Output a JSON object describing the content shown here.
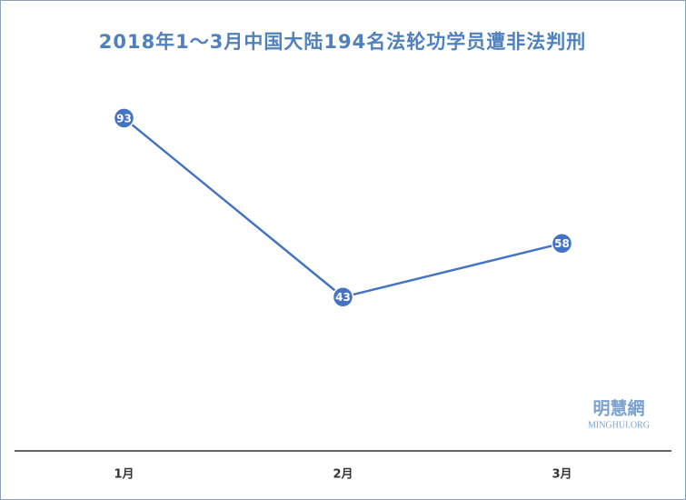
{
  "chart_data": {
    "type": "line",
    "title": "2018年1～3月中国大陆194名法轮功学员遭非法判刑",
    "categories": [
      "1月",
      "2月",
      "3月"
    ],
    "values": [
      93,
      43,
      58
    ],
    "color": "#4472c4",
    "ylim": [
      0,
      110
    ],
    "watermark": {
      "name": "明慧網",
      "site": "MINGHUI.ORG"
    }
  }
}
